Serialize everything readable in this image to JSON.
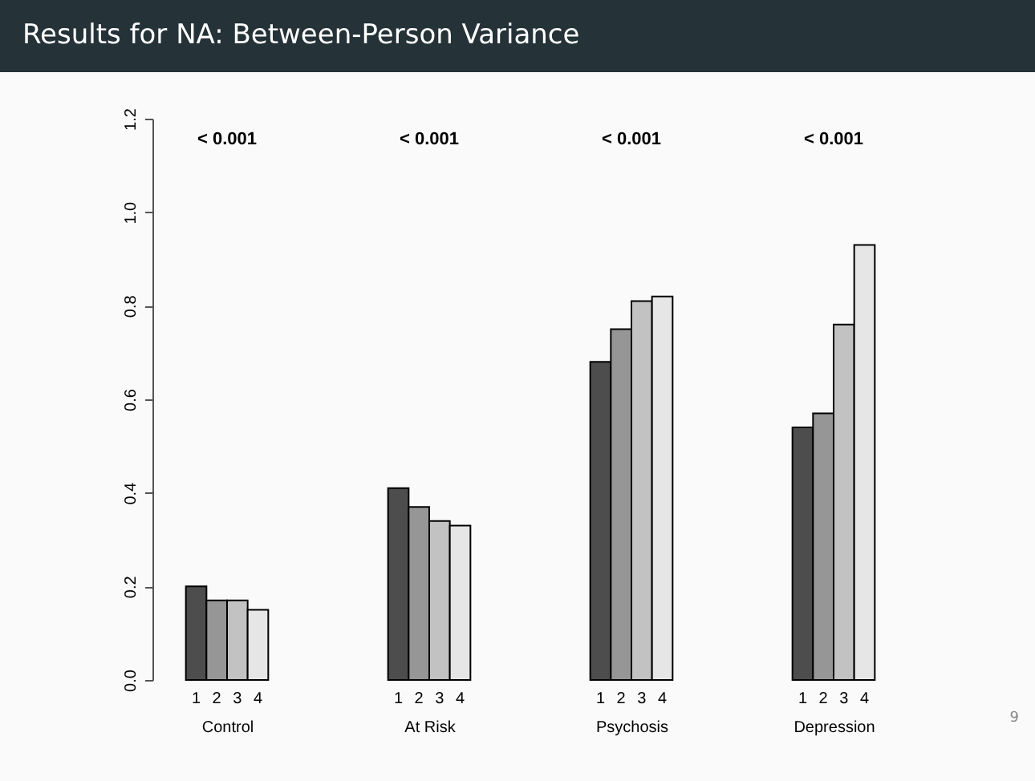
{
  "chart_data": {
    "type": "bar",
    "title": "Results for NA: Between-Person Variance",
    "categories": [
      "Control",
      "At Risk",
      "Psychosis",
      "Depression"
    ],
    "series": [
      {
        "name": "1",
        "color": "#4d4d4d",
        "values": [
          0.2,
          0.41,
          0.68,
          0.54
        ]
      },
      {
        "name": "2",
        "color": "#969696",
        "values": [
          0.17,
          0.37,
          0.75,
          0.57
        ]
      },
      {
        "name": "3",
        "color": "#c2c2c2",
        "values": [
          0.17,
          0.34,
          0.81,
          0.76
        ]
      },
      {
        "name": "4",
        "color": "#e6e6e6",
        "values": [
          0.15,
          0.33,
          0.82,
          0.93
        ]
      }
    ],
    "ylim": [
      0,
      1.2
    ],
    "yticks": [
      {
        "value": 0,
        "label": "0.0"
      },
      0.2,
      0.4,
      0.6,
      0.8,
      {
        "value": 1,
        "label": "1.0"
      },
      1.2
    ],
    "annotations": [
      "< 0.001",
      "< 0.001",
      "< 0.001",
      "< 0.001",
      "9"
    ]
  }
}
